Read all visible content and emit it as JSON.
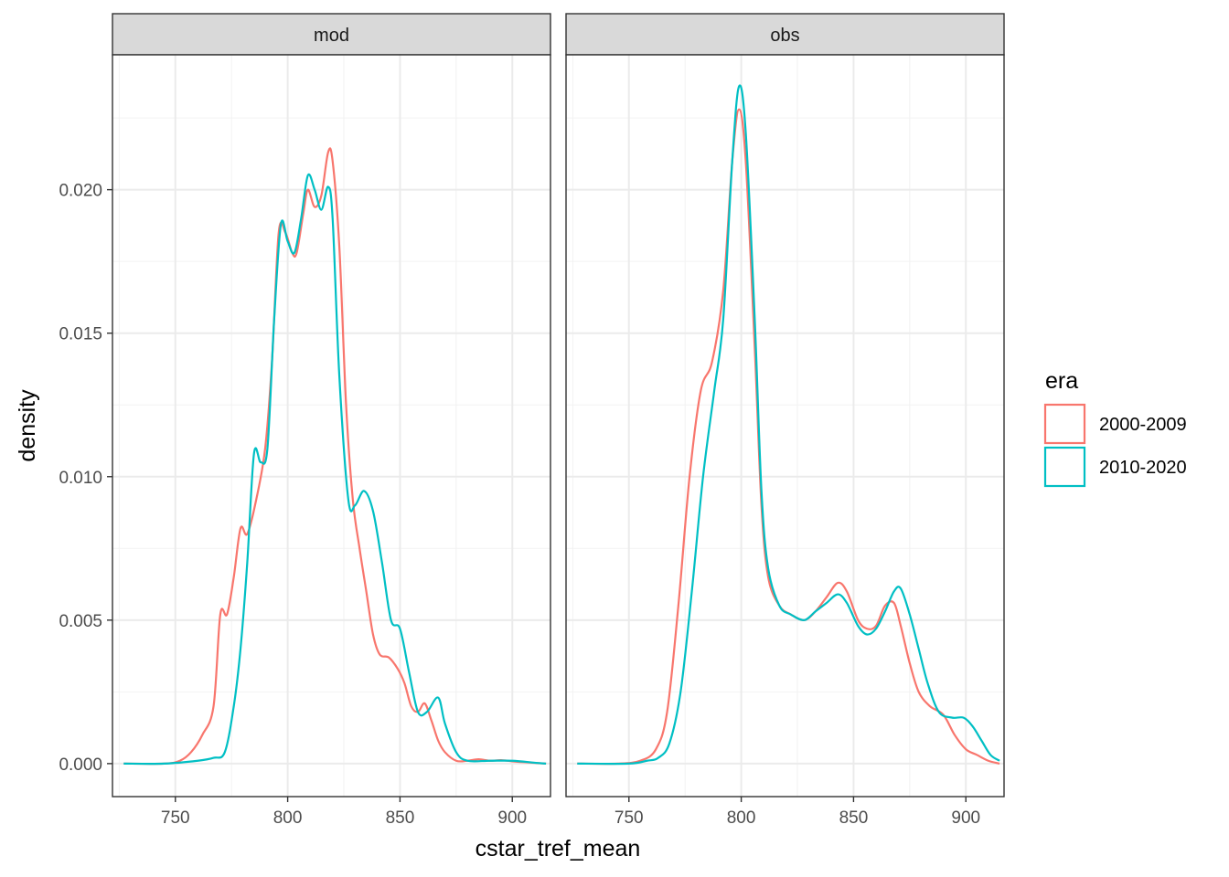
{
  "chart_data": {
    "type": "line",
    "xlabel": "cstar_tref_mean",
    "ylabel": "density",
    "xlim": [
      722,
      917
    ],
    "ylim": [
      -0.00115,
      0.0247
    ],
    "x_ticks": [
      750,
      800,
      850,
      900
    ],
    "y_ticks": [
      0.0,
      0.005,
      0.01,
      0.015,
      0.02
    ],
    "x_tick_labels": [
      "750",
      "800",
      "850",
      "900"
    ],
    "y_tick_labels": [
      "0.000",
      "0.005",
      "0.010",
      "0.015",
      "0.020"
    ],
    "grid": true,
    "legend": {
      "title": "era",
      "placement": "right",
      "entries": [
        {
          "label": "2000-2009",
          "color": "#F8766D"
        },
        {
          "label": "2010-2020",
          "color": "#00BFC4"
        }
      ]
    },
    "colors": {
      "2000-2009": "#F8766D",
      "2010-2020": "#00BFC4"
    },
    "facets": [
      {
        "label": "mod",
        "series": [
          {
            "name": "2000-2009",
            "points": [
              [
                727,
                0
              ],
              [
                745,
                0
              ],
              [
                752,
                0.0001
              ],
              [
                757,
                0.0004
              ],
              [
                762,
                0.001
              ],
              [
                767,
                0.002
              ],
              [
                770,
                0.0052
              ],
              [
                773,
                0.0052
              ],
              [
                776,
                0.0065
              ],
              [
                779,
                0.0082
              ],
              [
                782,
                0.008
              ],
              [
                786,
                0.0092
              ],
              [
                790,
                0.011
              ],
              [
                793,
                0.014
              ],
              [
                796,
                0.0185
              ],
              [
                799,
                0.0185
              ],
              [
                802,
                0.0178
              ],
              [
                804,
                0.0178
              ],
              [
                807,
                0.0192
              ],
              [
                809,
                0.02
              ],
              [
                812,
                0.0194
              ],
              [
                815,
                0.0198
              ],
              [
                818,
                0.0213
              ],
              [
                820,
                0.021
              ],
              [
                823,
                0.018
              ],
              [
                826,
                0.0125
              ],
              [
                829,
                0.0092
              ],
              [
                832,
                0.0075
              ],
              [
                835,
                0.006
              ],
              [
                838,
                0.0045
              ],
              [
                841,
                0.0038
              ],
              [
                845,
                0.0037
              ],
              [
                849,
                0.0033
              ],
              [
                852,
                0.0028
              ],
              [
                855,
                0.002
              ],
              [
                858,
                0.0018
              ],
              [
                861,
                0.0021
              ],
              [
                864,
                0.0015
              ],
              [
                867,
                0.0008
              ],
              [
                870,
                0.0004
              ],
              [
                875,
                0.0001
              ],
              [
                880,
                0.0001
              ],
              [
                885,
                0.00015
              ],
              [
                890,
                0.0001
              ],
              [
                895,
                0.00012
              ],
              [
                900,
                8e-05
              ],
              [
                905,
                5e-05
              ],
              [
                915,
                0
              ]
            ]
          },
          {
            "name": "2010-2020",
            "points": [
              [
                727,
                0
              ],
              [
                745,
                0
              ],
              [
                760,
                0.0001
              ],
              [
                767,
                0.0002
              ],
              [
                772,
                0.0004
              ],
              [
                776,
                0.002
              ],
              [
                779,
                0.004
              ],
              [
                782,
                0.007
              ],
              [
                785,
                0.0108
              ],
              [
                788,
                0.0105
              ],
              [
                791,
                0.011
              ],
              [
                794,
                0.0155
              ],
              [
                797,
                0.0188
              ],
              [
                800,
                0.0182
              ],
              [
                803,
                0.0178
              ],
              [
                806,
                0.019
              ],
              [
                809,
                0.0205
              ],
              [
                812,
                0.02
              ],
              [
                815,
                0.0193
              ],
              [
                818,
                0.0201
              ],
              [
                820,
                0.019
              ],
              [
                823,
                0.0135
              ],
              [
                827,
                0.0092
              ],
              [
                830,
                0.009
              ],
              [
                834,
                0.0095
              ],
              [
                838,
                0.0088
              ],
              [
                842,
                0.007
              ],
              [
                846,
                0.005
              ],
              [
                850,
                0.0047
              ],
              [
                854,
                0.0032
              ],
              [
                858,
                0.0018
              ],
              [
                862,
                0.0018
              ],
              [
                867,
                0.0023
              ],
              [
                870,
                0.0014
              ],
              [
                875,
                0.0004
              ],
              [
                880,
                0.0001
              ],
              [
                890,
                0.0001
              ],
              [
                900,
                0.0001
              ],
              [
                910,
                3e-05
              ],
              [
                915,
                0
              ]
            ]
          }
        ]
      },
      {
        "label": "obs",
        "series": [
          {
            "name": "2000-2009",
            "points": [
              [
                727,
                0
              ],
              [
                745,
                0
              ],
              [
                755,
                0.0001
              ],
              [
                762,
                0.0005
              ],
              [
                767,
                0.0018
              ],
              [
                772,
                0.0055
              ],
              [
                777,
                0.01
              ],
              [
                782,
                0.013
              ],
              [
                787,
                0.014
              ],
              [
                792,
                0.0165
              ],
              [
                796,
                0.021
              ],
              [
                799,
                0.0228
              ],
              [
                802,
                0.021
              ],
              [
                806,
                0.0145
              ],
              [
                809,
                0.009
              ],
              [
                812,
                0.0065
              ],
              [
                817,
                0.0055
              ],
              [
                822,
                0.0052
              ],
              [
                828,
                0.005
              ],
              [
                833,
                0.0053
              ],
              [
                838,
                0.0058
              ],
              [
                843,
                0.0063
              ],
              [
                847,
                0.006
              ],
              [
                852,
                0.005
              ],
              [
                856,
                0.0047
              ],
              [
                860,
                0.0048
              ],
              [
                864,
                0.0055
              ],
              [
                868,
                0.0056
              ],
              [
                871,
                0.0048
              ],
              [
                875,
                0.0035
              ],
              [
                879,
                0.0025
              ],
              [
                884,
                0.002
              ],
              [
                890,
                0.0017
              ],
              [
                895,
                0.001
              ],
              [
                900,
                0.0005
              ],
              [
                905,
                0.0003
              ],
              [
                910,
                0.0001
              ],
              [
                915,
                0
              ]
            ]
          },
          {
            "name": "2010-2020",
            "points": [
              [
                727,
                0
              ],
              [
                750,
                0
              ],
              [
                758,
                0.0001
              ],
              [
                763,
                0.0002
              ],
              [
                768,
                0.0007
              ],
              [
                773,
                0.0025
              ],
              [
                778,
                0.006
              ],
              [
                783,
                0.01
              ],
              [
                788,
                0.013
              ],
              [
                792,
                0.0155
              ],
              [
                796,
                0.021
              ],
              [
                799,
                0.0236
              ],
              [
                802,
                0.022
              ],
              [
                806,
                0.0155
              ],
              [
                809,
                0.0095
              ],
              [
                812,
                0.0068
              ],
              [
                817,
                0.0055
              ],
              [
                822,
                0.0052
              ],
              [
                828,
                0.005
              ],
              [
                833,
                0.0053
              ],
              [
                838,
                0.0056
              ],
              [
                843,
                0.0059
              ],
              [
                847,
                0.0056
              ],
              [
                852,
                0.0048
              ],
              [
                856,
                0.0045
              ],
              [
                860,
                0.0047
              ],
              [
                864,
                0.0053
              ],
              [
                868,
                0.006
              ],
              [
                871,
                0.0061
              ],
              [
                875,
                0.0052
              ],
              [
                879,
                0.004
              ],
              [
                883,
                0.0028
              ],
              [
                888,
                0.0018
              ],
              [
                894,
                0.0016
              ],
              [
                899,
                0.0016
              ],
              [
                903,
                0.0013
              ],
              [
                907,
                0.0008
              ],
              [
                911,
                0.0003
              ],
              [
                915,
                0.0001
              ]
            ]
          }
        ]
      }
    ]
  }
}
